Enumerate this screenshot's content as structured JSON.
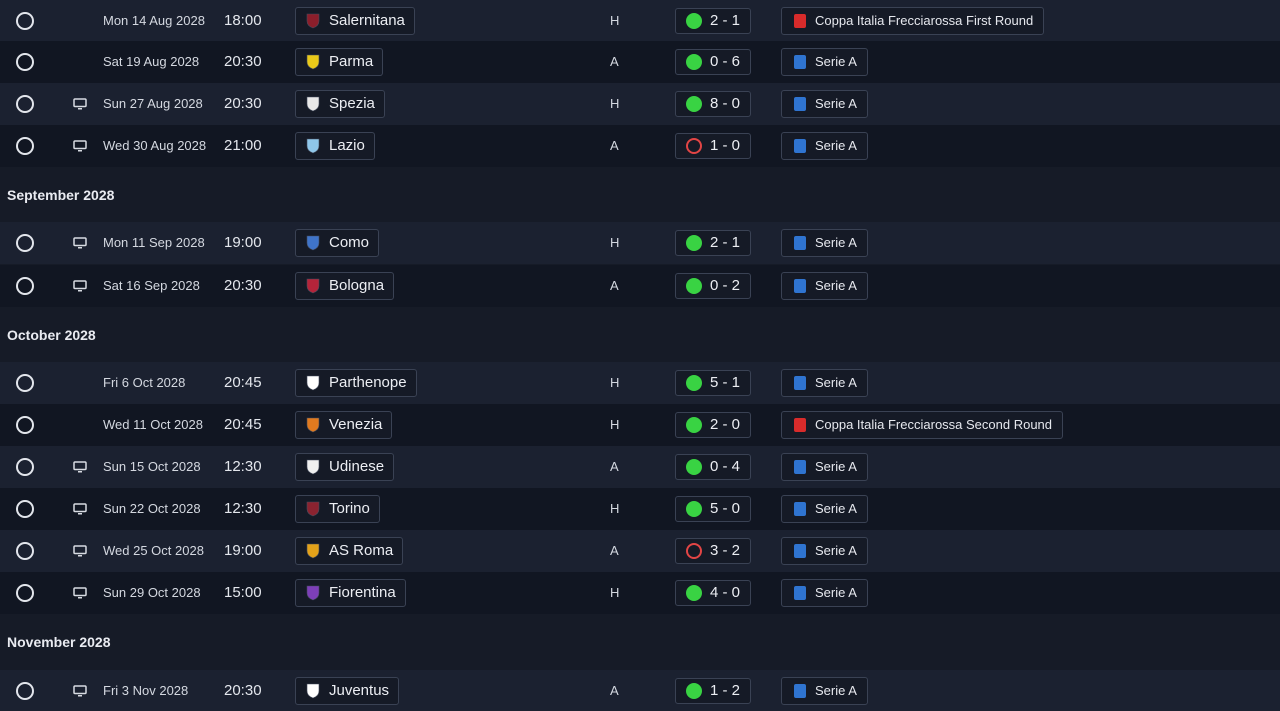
{
  "fixtures": [
    {
      "kind": "match",
      "date": "Mon 14 Aug 2028",
      "time": "18:00",
      "tv": false,
      "team": "Salernitana",
      "badge": "salernitana-badge-icon",
      "badge_color": "#8b1e2b",
      "venue": "H",
      "score": "2 - 1",
      "result": "win",
      "competition": "Coppa Italia Frecciarossa First Round",
      "comp_type": "cup"
    },
    {
      "kind": "match",
      "date": "Sat 19 Aug 2028",
      "time": "20:30",
      "tv": false,
      "team": "Parma",
      "badge": "parma-badge-icon",
      "badge_color": "#e9c919",
      "venue": "A",
      "score": "0 - 6",
      "result": "win",
      "competition": "Serie A",
      "comp_type": "league"
    },
    {
      "kind": "match",
      "date": "Sun 27 Aug 2028",
      "time": "20:30",
      "tv": true,
      "team": "Spezia",
      "badge": "spezia-badge-icon",
      "badge_color": "#e8e8e8",
      "venue": "H",
      "score": "8 - 0",
      "result": "win",
      "competition": "Serie A",
      "comp_type": "league"
    },
    {
      "kind": "match",
      "date": "Wed 30 Aug 2028",
      "time": "21:00",
      "tv": true,
      "team": "Lazio",
      "badge": "lazio-badge-icon",
      "badge_color": "#8fc7ea",
      "venue": "A",
      "score": "1 - 0",
      "result": "loss",
      "competition": "Serie A",
      "comp_type": "league"
    },
    {
      "kind": "header",
      "label": "September 2028"
    },
    {
      "kind": "match",
      "date": "Mon 11 Sep 2028",
      "time": "19:00",
      "tv": true,
      "team": "Como",
      "badge": "como-badge-icon",
      "badge_color": "#3f74c9",
      "venue": "H",
      "score": "2 - 1",
      "result": "win",
      "competition": "Serie A",
      "comp_type": "league"
    },
    {
      "kind": "match",
      "date": "Sat 16 Sep 2028",
      "time": "20:30",
      "tv": true,
      "team": "Bologna",
      "badge": "bologna-badge-icon",
      "badge_color": "#b5243a",
      "venue": "A",
      "score": "0 - 2",
      "result": "win",
      "competition": "Serie A",
      "comp_type": "league"
    },
    {
      "kind": "header",
      "label": "October 2028"
    },
    {
      "kind": "match",
      "date": "Fri 6 Oct 2028",
      "time": "20:45",
      "tv": false,
      "team": "Parthenope",
      "badge": "parthenope-badge-icon",
      "badge_color": "#ffffff",
      "venue": "H",
      "score": "5 - 1",
      "result": "win",
      "competition": "Serie A",
      "comp_type": "league"
    },
    {
      "kind": "match",
      "date": "Wed 11 Oct 2028",
      "time": "20:45",
      "tv": false,
      "team": "Venezia",
      "badge": "venezia-badge-icon",
      "badge_color": "#e07a1f",
      "venue": "H",
      "score": "2 - 0",
      "result": "win",
      "competition": "Coppa Italia Frecciarossa Second Round",
      "comp_type": "cup"
    },
    {
      "kind": "match",
      "date": "Sun 15 Oct 2028",
      "time": "12:30",
      "tv": true,
      "team": "Udinese",
      "badge": "udinese-badge-icon",
      "badge_color": "#f0f0f0",
      "venue": "A",
      "score": "0 - 4",
      "result": "win",
      "competition": "Serie A",
      "comp_type": "league"
    },
    {
      "kind": "match",
      "date": "Sun 22 Oct 2028",
      "time": "12:30",
      "tv": true,
      "team": "Torino",
      "badge": "torino-badge-icon",
      "badge_color": "#8b2330",
      "venue": "H",
      "score": "5 - 0",
      "result": "win",
      "competition": "Serie A",
      "comp_type": "league"
    },
    {
      "kind": "match",
      "date": "Wed 25 Oct 2028",
      "time": "19:00",
      "tv": true,
      "team": "AS Roma",
      "badge": "roma-badge-icon",
      "badge_color": "#e3a21a",
      "venue": "A",
      "score": "3 - 2",
      "result": "loss",
      "competition": "Serie A",
      "comp_type": "league"
    },
    {
      "kind": "match",
      "date": "Sun 29 Oct 2028",
      "time": "15:00",
      "tv": true,
      "team": "Fiorentina",
      "badge": "fiorentina-badge-icon",
      "badge_color": "#7d3fb8",
      "venue": "H",
      "score": "4 - 0",
      "result": "win",
      "competition": "Serie A",
      "comp_type": "league"
    },
    {
      "kind": "header",
      "label": "November 2028"
    },
    {
      "kind": "match",
      "date": "Fri 3 Nov 2028",
      "time": "20:30",
      "tv": true,
      "team": "Juventus",
      "badge": "juventus-badge-icon",
      "badge_color": "#ffffff",
      "venue": "A",
      "score": "1 - 2",
      "result": "win",
      "competition": "Serie A",
      "comp_type": "league"
    }
  ],
  "colors": {
    "win": "#39d343",
    "loss": "#e24545",
    "league": "#2f74d0",
    "cup": "#d82b2b"
  }
}
